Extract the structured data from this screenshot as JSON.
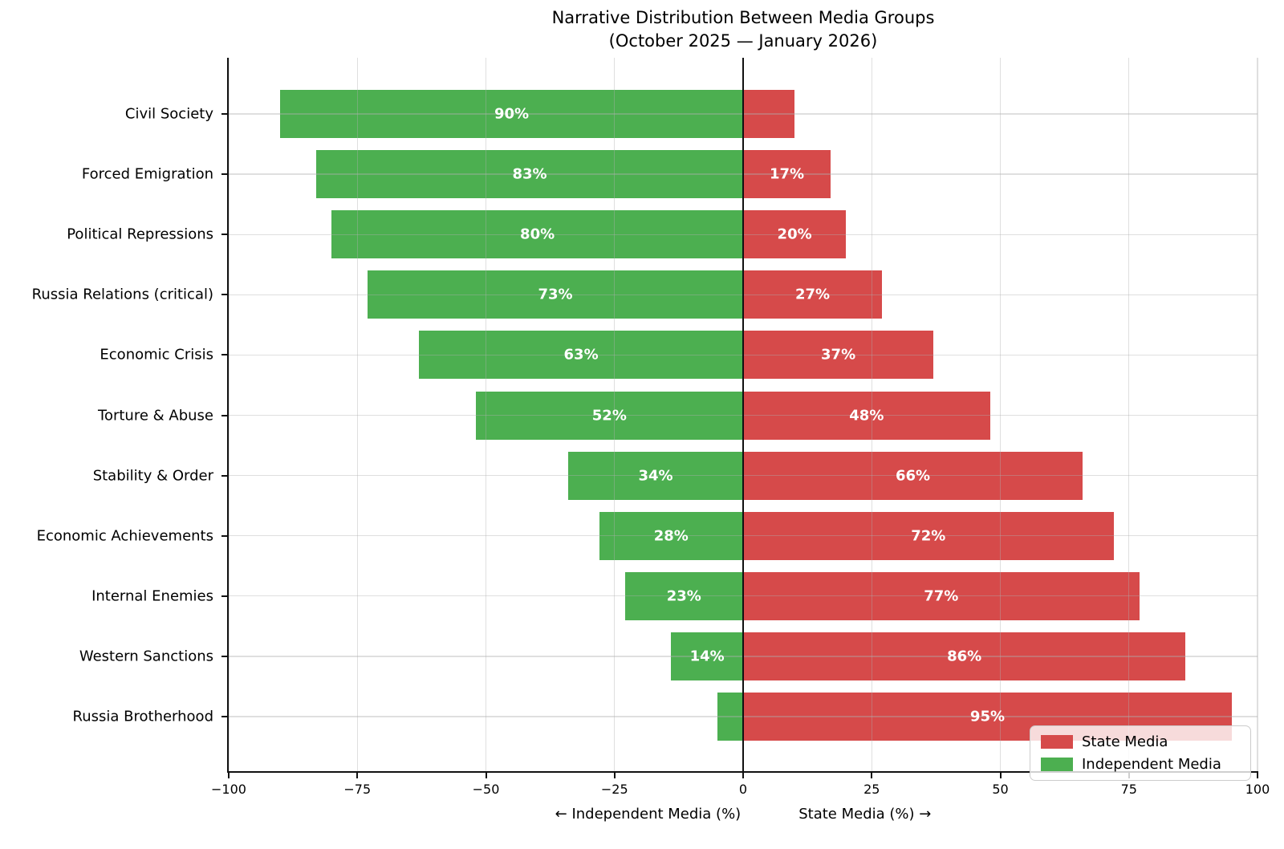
{
  "chart_data": {
    "type": "bar",
    "orientation": "horizontal-diverging",
    "title": "Narrative Distribution Between Media Groups",
    "subtitle": "(October 2025 — January 2026)",
    "categories": [
      "Civil Society",
      "Forced Emigration",
      "Political Repressions",
      "Russia Relations (critical)",
      "Economic Crisis",
      "Torture & Abuse",
      "Stability & Order",
      "Economic Achievements",
      "Internal Enemies",
      "Western Sanctions",
      "Russia Brotherhood"
    ],
    "series": [
      {
        "name": "Independent Media",
        "direction": "left",
        "color": "#4caf50",
        "values": [
          90,
          83,
          80,
          73,
          63,
          52,
          34,
          28,
          23,
          14,
          5
        ]
      },
      {
        "name": "State Media",
        "direction": "right",
        "color": "#d64a4a",
        "values": [
          10,
          17,
          20,
          27,
          37,
          48,
          66,
          72,
          77,
          86,
          95
        ]
      }
    ],
    "bar_labels": {
      "independent": [
        "90%",
        "83%",
        "80%",
        "73%",
        "63%",
        "52%",
        "34%",
        "28%",
        "23%",
        "14%",
        ""
      ],
      "state": [
        "",
        "17%",
        "20%",
        "27%",
        "37%",
        "48%",
        "66%",
        "72%",
        "77%",
        "86%",
        "95%"
      ]
    },
    "x_axis": {
      "range": [
        -100,
        100
      ],
      "ticks": [
        -100,
        -75,
        -50,
        -25,
        0,
        25,
        50,
        75,
        100
      ],
      "tick_labels": [
        "−100",
        "−75",
        "−50",
        "−25",
        "0",
        "25",
        "50",
        "75",
        "100"
      ],
      "label_left": "← Independent Media (%)",
      "label_right": "State Media (%) →"
    },
    "grid": true,
    "zero_line": true,
    "legend": {
      "position": "lower right",
      "entries": [
        {
          "label": "State Media",
          "color": "#d64a4a"
        },
        {
          "label": "Independent Media",
          "color": "#4caf50"
        }
      ]
    }
  }
}
